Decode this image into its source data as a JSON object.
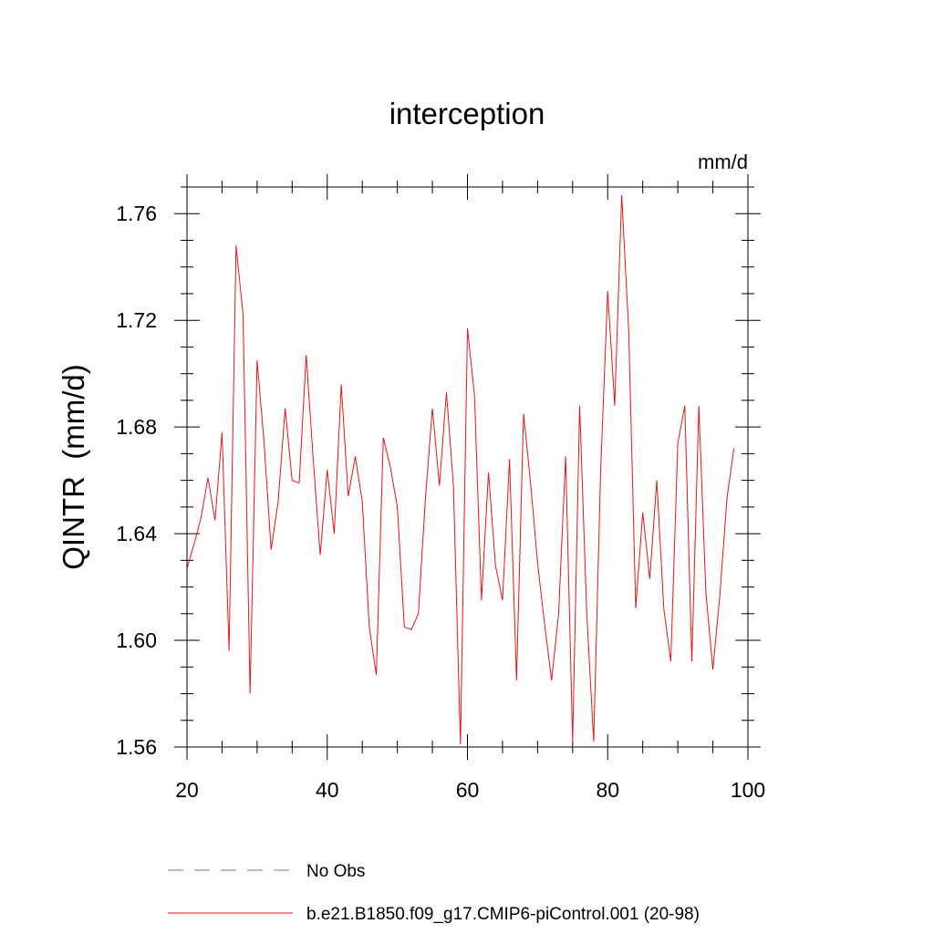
{
  "chart_data": {
    "type": "line",
    "title": "interception",
    "units_label": "mm/d",
    "xlabel": "",
    "ylabel": "QINTR  (mm/d)",
    "xlim": [
      20,
      100
    ],
    "ylim": [
      1.56,
      1.77
    ],
    "x_ticks": [
      20,
      40,
      60,
      80,
      100
    ],
    "x_tick_labels": [
      "20",
      "40",
      "60",
      "80",
      "100"
    ],
    "y_ticks": [
      1.56,
      1.6,
      1.64,
      1.68,
      1.72,
      1.76
    ],
    "y_tick_labels": [
      "1.56",
      "1.60",
      "1.64",
      "1.68",
      "1.72",
      "1.76"
    ],
    "legend_position": "bottom",
    "series": [
      {
        "name": "No Obs",
        "color": "#7b6fd0",
        "style": "dashed",
        "x": [],
        "values": []
      },
      {
        "name": "b.e21.B1850.f09_g17.CMIP6-piControl.001 (20-98)",
        "color": "#e8141b",
        "style": "solid",
        "x": [
          20,
          21,
          22,
          23,
          24,
          25,
          26,
          27,
          28,
          29,
          30,
          31,
          32,
          33,
          34,
          35,
          36,
          37,
          38,
          39,
          40,
          41,
          42,
          43,
          44,
          45,
          46,
          47,
          48,
          49,
          50,
          51,
          52,
          53,
          54,
          55,
          56,
          57,
          58,
          59,
          60,
          61,
          62,
          63,
          64,
          65,
          66,
          67,
          68,
          69,
          70,
          71,
          72,
          73,
          74,
          75,
          76,
          77,
          78,
          79,
          80,
          81,
          82,
          83,
          84,
          85,
          86,
          87,
          88,
          89,
          90,
          91,
          92,
          93,
          94,
          95,
          96,
          97,
          98
        ],
        "values": [
          1.627,
          1.636,
          1.646,
          1.661,
          1.645,
          1.678,
          1.596,
          1.748,
          1.722,
          1.58,
          1.705,
          1.674,
          1.634,
          1.652,
          1.687,
          1.66,
          1.659,
          1.707,
          1.668,
          1.632,
          1.664,
          1.64,
          1.696,
          1.654,
          1.669,
          1.652,
          1.605,
          1.587,
          1.676,
          1.665,
          1.65,
          1.605,
          1.604,
          1.61,
          1.653,
          1.687,
          1.658,
          1.693,
          1.658,
          1.561,
          1.717,
          1.692,
          1.615,
          1.663,
          1.628,
          1.615,
          1.668,
          1.585,
          1.685,
          1.659,
          1.629,
          1.606,
          1.585,
          1.61,
          1.669,
          1.562,
          1.688,
          1.611,
          1.562,
          1.664,
          1.731,
          1.688,
          1.767,
          1.716,
          1.612,
          1.648,
          1.623,
          1.66,
          1.612,
          1.592,
          1.674,
          1.688,
          1.592,
          1.688,
          1.618,
          1.589,
          1.617,
          1.653,
          1.672
        ]
      }
    ]
  }
}
